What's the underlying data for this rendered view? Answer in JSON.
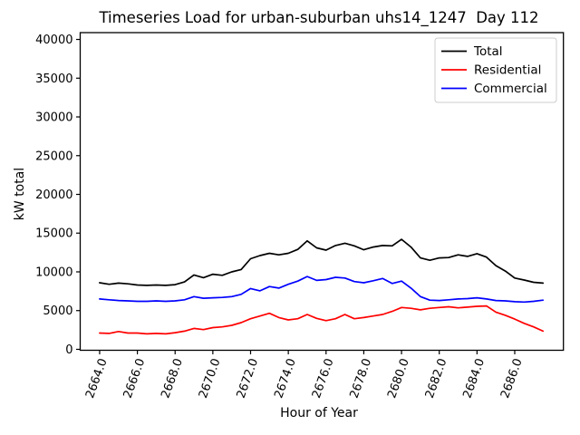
{
  "figure": {
    "background": "#ffffff",
    "frame_color": "#000000"
  },
  "chart_data": {
    "type": "line",
    "title": "Timeseries Load for urban-suburban uhs14_1247  Day 112",
    "xlabel": "Hour of Year",
    "ylabel": "kW total",
    "xlim": [
      2662.97,
      2688.58
    ],
    "ylim": [
      -120,
      40880
    ],
    "grid": false,
    "legend_position": "upper right",
    "x_ticks": [
      2664,
      2666,
      2668,
      2670,
      2672,
      2674,
      2676,
      2678,
      2680,
      2682,
      2684,
      2686
    ],
    "x_tick_labels": [
      "2664.0",
      "2666.0",
      "2668.0",
      "2670.0",
      "2672.0",
      "2674.0",
      "2676.0",
      "2678.0",
      "2680.0",
      "2682.0",
      "2684.0",
      "2686.0"
    ],
    "y_ticks": [
      0,
      5000,
      10000,
      15000,
      20000,
      25000,
      30000,
      35000,
      40000
    ],
    "y_tick_labels": [
      "0",
      "5000",
      "10000",
      "15000",
      "20000",
      "25000",
      "30000",
      "35000",
      "40000"
    ],
    "x": [
      2664.0,
      2664.5,
      2665.0,
      2665.5,
      2666.0,
      2666.5,
      2667.0,
      2667.5,
      2668.0,
      2668.5,
      2669.0,
      2669.5,
      2670.0,
      2670.5,
      2671.0,
      2671.5,
      2672.0,
      2672.5,
      2673.0,
      2673.5,
      2674.0,
      2674.5,
      2675.0,
      2675.5,
      2676.0,
      2676.5,
      2677.0,
      2677.5,
      2678.0,
      2678.5,
      2679.0,
      2679.5,
      2680.0,
      2680.5,
      2681.0,
      2681.5,
      2682.0,
      2682.5,
      2683.0,
      2683.5,
      2684.0,
      2684.5,
      2685.0,
      2685.5,
      2686.0,
      2686.5,
      2687.0,
      2687.5
    ],
    "series": [
      {
        "name": "Total",
        "color": "#000000",
        "values": [
          8600,
          8400,
          8550,
          8450,
          8300,
          8250,
          8300,
          8250,
          8350,
          8700,
          9600,
          9250,
          9700,
          9550,
          10000,
          10300,
          11700,
          12100,
          12400,
          12200,
          12400,
          12900,
          14000,
          13100,
          12800,
          13400,
          13700,
          13350,
          12850,
          13200,
          13400,
          13350,
          14200,
          13200,
          11800,
          11500,
          11800,
          11850,
          12200,
          12000,
          12350,
          11900,
          10800,
          10100,
          9200,
          8950,
          8650,
          8550
        ]
      },
      {
        "name": "Residential",
        "color": "#ff0000",
        "values": [
          2100,
          2050,
          2300,
          2100,
          2100,
          2000,
          2050,
          2000,
          2150,
          2350,
          2700,
          2550,
          2800,
          2900,
          3100,
          3450,
          3950,
          4300,
          4650,
          4100,
          3800,
          3950,
          4500,
          4000,
          3700,
          3950,
          4500,
          3950,
          4100,
          4300,
          4500,
          4900,
          5400,
          5300,
          5100,
          5300,
          5400,
          5500,
          5350,
          5450,
          5550,
          5600,
          4800,
          4400,
          3900,
          3350,
          2900,
          2350
        ]
      },
      {
        "name": "Commercial",
        "color": "#0000ff",
        "values": [
          6500,
          6400,
          6300,
          6250,
          6200,
          6200,
          6250,
          6200,
          6250,
          6400,
          6800,
          6600,
          6650,
          6700,
          6800,
          7100,
          7850,
          7550,
          8100,
          7900,
          8400,
          8800,
          9400,
          8900,
          9000,
          9300,
          9200,
          8750,
          8600,
          8850,
          9150,
          8500,
          8800,
          7900,
          6800,
          6350,
          6300,
          6400,
          6500,
          6550,
          6650,
          6500,
          6300,
          6250,
          6150,
          6100,
          6200,
          6350
        ]
      }
    ]
  }
}
